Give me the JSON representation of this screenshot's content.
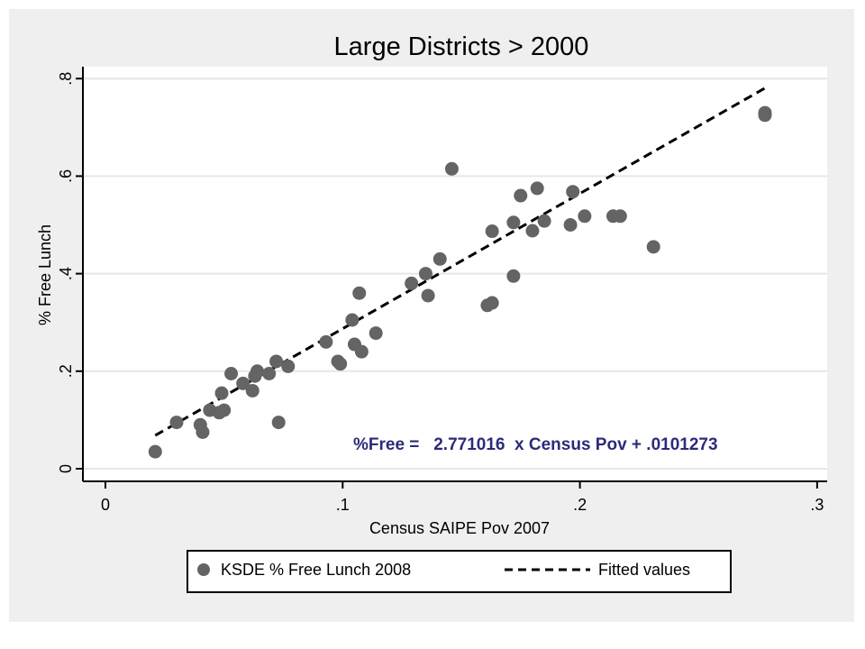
{
  "chart_data": {
    "type": "scatter",
    "title": "Large Districts > 2000",
    "xlabel": "Census SAIPE Pov 2007",
    "ylabel": "% Free Lunch",
    "xlim": [
      0,
      0.3
    ],
    "ylim": [
      0,
      0.8
    ],
    "x_ticks": [
      0,
      0.1,
      0.2,
      0.3
    ],
    "x_tick_labels": [
      "0",
      ".1",
      ".2",
      ".3"
    ],
    "y_ticks": [
      0,
      0.2,
      0.4,
      0.6,
      0.8
    ],
    "y_tick_labels": [
      "0",
      ".2",
      ".4",
      ".6",
      ".8"
    ],
    "grid": true,
    "legend_position": "bottom",
    "annotation": "%Free =   2.771016  x Census Pov + .0101273",
    "colors": {
      "points": "#646464",
      "fit_line": "#000000",
      "annotation": "#2b2b7a",
      "outer_background": "#efefef",
      "grid": "#e6e6e6"
    },
    "series": [
      {
        "name": "KSDE % Free Lunch 2008",
        "kind": "scatter",
        "points": [
          [
            0.021,
            0.035
          ],
          [
            0.03,
            0.095
          ],
          [
            0.04,
            0.09
          ],
          [
            0.041,
            0.075
          ],
          [
            0.044,
            0.12
          ],
          [
            0.048,
            0.115
          ],
          [
            0.049,
            0.155
          ],
          [
            0.05,
            0.12
          ],
          [
            0.053,
            0.195
          ],
          [
            0.058,
            0.175
          ],
          [
            0.062,
            0.16
          ],
          [
            0.063,
            0.19
          ],
          [
            0.064,
            0.2
          ],
          [
            0.069,
            0.195
          ],
          [
            0.072,
            0.22
          ],
          [
            0.073,
            0.095
          ],
          [
            0.077,
            0.21
          ],
          [
            0.093,
            0.26
          ],
          [
            0.098,
            0.22
          ],
          [
            0.099,
            0.215
          ],
          [
            0.104,
            0.305
          ],
          [
            0.105,
            0.255
          ],
          [
            0.107,
            0.36
          ],
          [
            0.108,
            0.24
          ],
          [
            0.114,
            0.278
          ],
          [
            0.129,
            0.38
          ],
          [
            0.135,
            0.4
          ],
          [
            0.136,
            0.355
          ],
          [
            0.141,
            0.43
          ],
          [
            0.146,
            0.615
          ],
          [
            0.161,
            0.335
          ],
          [
            0.163,
            0.34
          ],
          [
            0.163,
            0.487
          ],
          [
            0.172,
            0.395
          ],
          [
            0.172,
            0.505
          ],
          [
            0.175,
            0.56
          ],
          [
            0.18,
            0.488
          ],
          [
            0.182,
            0.575
          ],
          [
            0.185,
            0.508
          ],
          [
            0.196,
            0.5
          ],
          [
            0.197,
            0.568
          ],
          [
            0.202,
            0.518
          ],
          [
            0.214,
            0.518
          ],
          [
            0.217,
            0.518
          ],
          [
            0.231,
            0.455
          ],
          [
            0.278,
            0.73
          ],
          [
            0.278,
            0.725
          ]
        ]
      },
      {
        "name": "Fitted values",
        "kind": "line",
        "style": "dashed",
        "slope": 2.771016,
        "intercept": 0.0101273,
        "x_range": [
          0.021,
          0.278
        ]
      }
    ]
  }
}
